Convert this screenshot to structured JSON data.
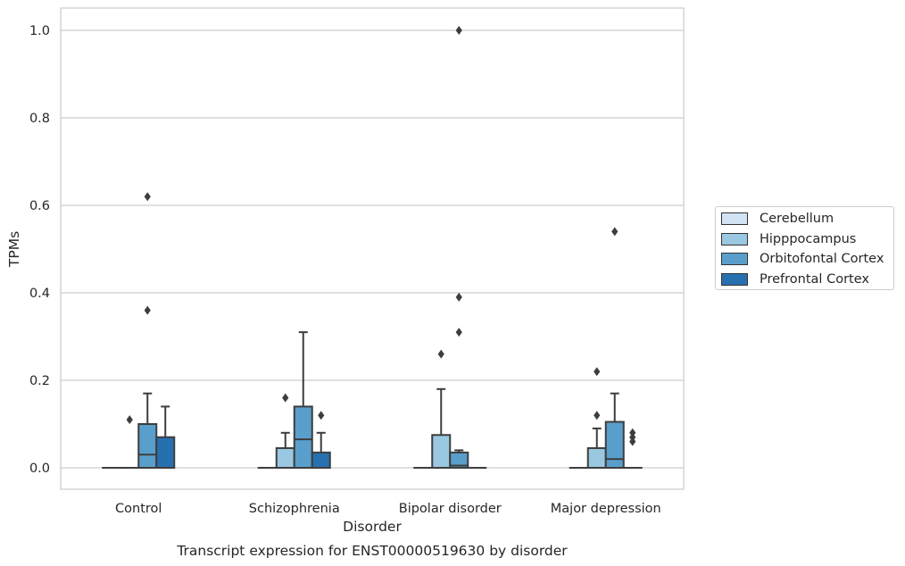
{
  "caption": "Transcript expression for ENST00000519630 by disorder",
  "chart_data": {
    "type": "boxplot",
    "xlabel": "Disorder",
    "ylabel": "TPMs",
    "ylim": [
      -0.05,
      1.05
    ],
    "yticks": [
      0.0,
      0.2,
      0.4,
      0.6,
      0.8,
      1.0
    ],
    "ytick_labels": [
      "0.0",
      "0.2",
      "0.4",
      "0.6",
      "0.8",
      "1.0"
    ],
    "grid": "horizontal",
    "legend_position": "right",
    "categories": [
      "Control",
      "Schizophrenia",
      "Bipolar disorder",
      "Major depression"
    ],
    "series": [
      {
        "name": "Cerebellum",
        "color": "#d2e3f3",
        "boxes": [
          {
            "q1": 0,
            "median": 0,
            "q3": 0,
            "whislo": 0,
            "whishi": 0,
            "fliers": []
          },
          {
            "q1": 0,
            "median": 0,
            "q3": 0,
            "whislo": 0,
            "whishi": 0,
            "fliers": []
          },
          {
            "q1": 0,
            "median": 0,
            "q3": 0,
            "whislo": 0,
            "whishi": 0,
            "fliers": []
          },
          {
            "q1": 0,
            "median": 0,
            "q3": 0,
            "whislo": 0,
            "whishi": 0,
            "fliers": []
          }
        ]
      },
      {
        "name": "Hipppocampus",
        "color": "#9ac8e0",
        "boxes": [
          {
            "q1": 0,
            "median": 0,
            "q3": 0,
            "whislo": 0,
            "whishi": 0,
            "fliers": [
              0.11
            ]
          },
          {
            "q1": 0,
            "median": 0,
            "q3": 0.045,
            "whislo": 0,
            "whishi": 0.08,
            "fliers": [
              0.16
            ]
          },
          {
            "q1": 0,
            "median": 0,
            "q3": 0.075,
            "whislo": 0,
            "whishi": 0.18,
            "fliers": [
              0.26
            ]
          },
          {
            "q1": 0,
            "median": 0,
            "q3": 0.045,
            "whislo": 0,
            "whishi": 0.09,
            "fliers": [
              0.12,
              0.22
            ]
          }
        ]
      },
      {
        "name": "Orbitofontal Cortex",
        "color": "#5a9fcc",
        "boxes": [
          {
            "q1": 0,
            "median": 0.03,
            "q3": 0.1,
            "whislo": 0,
            "whishi": 0.17,
            "fliers": [
              0.36,
              0.62
            ]
          },
          {
            "q1": 0,
            "median": 0.065,
            "q3": 0.14,
            "whislo": 0,
            "whishi": 0.31,
            "fliers": []
          },
          {
            "q1": 0,
            "median": 0.005,
            "q3": 0.035,
            "whislo": 0,
            "whishi": 0.04,
            "fliers": [
              0.31,
              0.39,
              1.0
            ]
          },
          {
            "q1": 0,
            "median": 0.02,
            "q3": 0.105,
            "whislo": 0,
            "whishi": 0.17,
            "fliers": [
              0.54
            ]
          }
        ]
      },
      {
        "name": "Prefrontal Cortex",
        "color": "#2770b0",
        "boxes": [
          {
            "q1": 0,
            "median": 0,
            "q3": 0.07,
            "whislo": 0,
            "whishi": 0.14,
            "fliers": []
          },
          {
            "q1": 0,
            "median": 0,
            "q3": 0.035,
            "whislo": 0,
            "whishi": 0.08,
            "fliers": [
              0.12
            ]
          },
          {
            "q1": 0,
            "median": 0,
            "q3": 0,
            "whislo": 0,
            "whishi": 0,
            "fliers": []
          },
          {
            "q1": 0,
            "median": 0,
            "q3": 0,
            "whislo": 0,
            "whishi": 0,
            "fliers": [
              0.06,
              0.07,
              0.08
            ]
          }
        ]
      }
    ]
  }
}
